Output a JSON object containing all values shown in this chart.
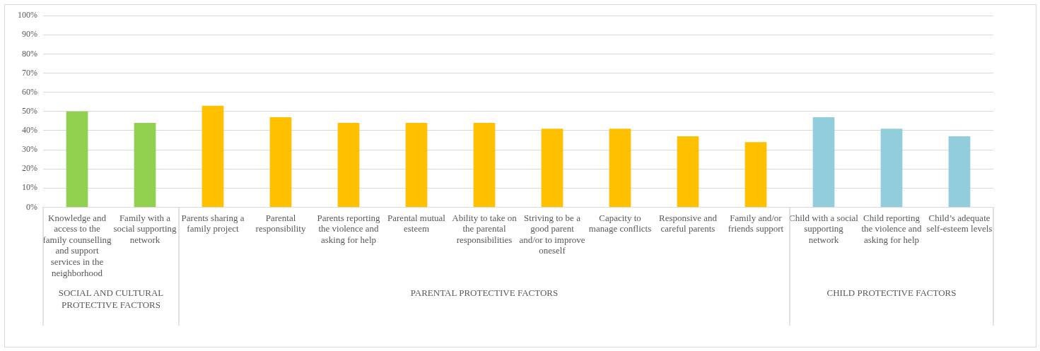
{
  "chart_data": {
    "type": "bar",
    "categories": [
      "Knowledge and access to the family counselling and support services in the neighborhood",
      "Family with a social supporting network",
      "Parents sharing a family project",
      "Parental responsibility",
      "Parents reporting the violence and asking for help",
      "Parental mutual esteem",
      "Ability to take on the parental responsibilities",
      "Striving to be a good parent and/or to improve oneself",
      "Capacity to manage conflicts",
      "Responsive and careful parents",
      "Family and/or friends support",
      "Child with a social supporting network",
      "Child reporting the violence and asking for help",
      "Child’s adequate self-esteem levels"
    ],
    "values": [
      50,
      44,
      53,
      47,
      44,
      44,
      44,
      41,
      41,
      37,
      34,
      47,
      41,
      37
    ],
    "colors": [
      "#92d050",
      "#92d050",
      "#ffc000",
      "#ffc000",
      "#ffc000",
      "#ffc000",
      "#ffc000",
      "#ffc000",
      "#ffc000",
      "#ffc000",
      "#ffc000",
      "#92cddc",
      "#92cddc",
      "#92cddc"
    ],
    "ylim": [
      0,
      100
    ],
    "yticks": [
      {
        "value": 0,
        "label": "0%"
      },
      {
        "value": 10,
        "label": "10%"
      },
      {
        "value": 20,
        "label": "20%"
      },
      {
        "value": 30,
        "label": "30%"
      },
      {
        "value": 40,
        "label": "40%"
      },
      {
        "value": 50,
        "label": "50%"
      },
      {
        "value": 60,
        "label": "60%"
      },
      {
        "value": 70,
        "label": "70%"
      },
      {
        "value": 80,
        "label": "80%"
      },
      {
        "value": 90,
        "label": "90%"
      },
      {
        "value": 100,
        "label": "100%"
      }
    ],
    "grid": "y",
    "annotations": [
      "SOCIAL AND CULTURAL PROTECTIVE FACTORS",
      "PARENTAL PROTECTIVE FACTORS",
      "CHILD PROTECTIVE FACTORS"
    ]
  }
}
